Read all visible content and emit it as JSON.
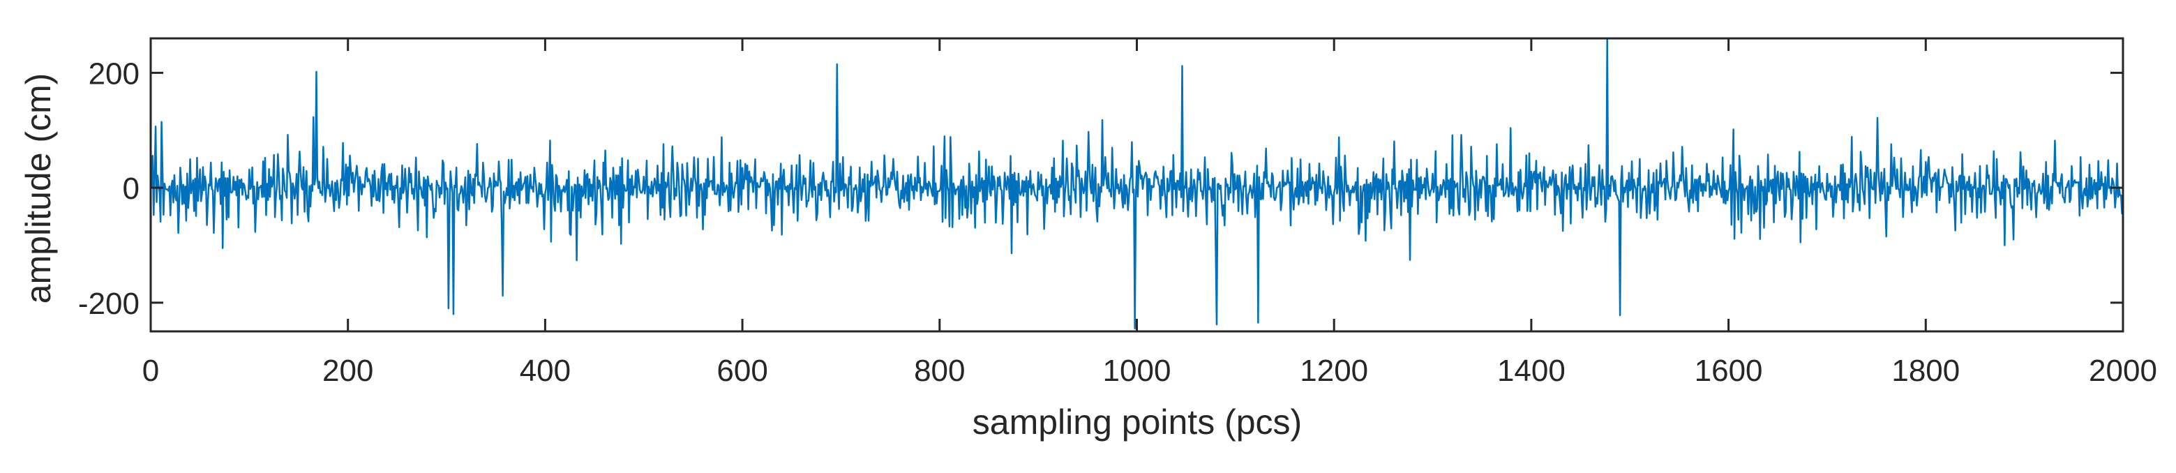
{
  "chart_data": {
    "type": "line",
    "title": "",
    "xlabel": "sampling points (pcs)",
    "ylabel": "amplitude (cm)",
    "xlim": [
      0,
      2000
    ],
    "ylim": [
      -250,
      260
    ],
    "xticks": [
      0,
      200,
      400,
      600,
      800,
      1000,
      1200,
      1400,
      1600,
      1800,
      2000
    ],
    "yticks": [
      -200,
      0,
      200
    ],
    "grid": false,
    "legend": "none",
    "line_color": "#0072BD",
    "series": [
      {
        "x_start": 1,
        "x_step": 1,
        "values": [
          -0.8,
          44.6,
          -37.2,
          12.4,
          89.3,
          -64.9,
          33.7,
          6.1,
          -16.5,
          -52.6,
          63.4,
          21.8,
          -41.7,
          5.6,
          -2.4,
          -24.0,
          -3.5,
          -5.0,
          2.5,
          -30.3,
          1.8,
          13.2,
          -38.3,
          25.4,
          -43.8,
          -54.7,
          2.6,
          -52.2,
          -21.6,
          22.7,
          5.8,
          -79.2,
          13.1,
          -31.6,
          3.6,
          -57.6,
          13.6,
          -23.1,
          -12.3,
          44.9,
          -12.9,
          11.6,
          19.9,
          -31.2,
          14.2,
          -35.3,
          29.0,
          -21.8,
          10.6,
          42.3,
          -39.2,
          -28.6,
          28.4,
          -2.7,
          15.7,
          5.1,
          -49.0,
          -50.2,
          27.6,
          4.1,
          47.6,
          -2.1,
          -2.6,
          -46.3,
          -16.8,
          19.6,
          8.0,
          -27.6,
          25.7,
          11.1,
          -21.2,
          35.4,
          -62.7,
          23.4,
          -42.6,
          29.4,
          -69.4,
          31.8,
          -45.9,
          16.5,
          -5.4,
          -8.2,
          -5.4,
          31.3,
          -33.8,
          13.2,
          -11.1,
          19.8,
          -44.9,
          7.6,
          0.4,
          25.9,
          -15.0,
          17.8,
          10.2,
          -5.0,
          -12.8,
          -11.6,
          -12.3,
          24.7,
          -6.1,
          6.1,
          39.1,
          -36.6,
          2.3,
          -42.1,
          -18.0,
          11.2,
          -20.1,
          0.6,
          8.5,
          5.8,
          -11.8,
          38.6,
          -11.6,
          29.7,
          -45.5,
          18.4,
          -30.2,
          48.5,
          -34.8,
          14.8,
          1.0,
          6.8,
          48.3,
          -40.4,
          -31.2,
          14.4,
          65.2,
          22.4,
          -20.0,
          -8.1,
          -33.1,
          39.7,
          27.2,
          -6.2,
          -26.7,
          -34.4,
          63.7,
          20.4,
          19.8,
          4.6,
          -52.5,
          26.8,
          3.0,
          -22.3,
          -4.8,
          21.4,
          -25.4,
          16.5,
          66.1,
          24.6,
          3.6,
          -28.6,
          45.4,
          -32.5,
          3.6,
          19.5,
          -23.8,
          -64.0,
          6.2,
          -41.0,
          8.6,
          -12.1,
          88.1,
          3.2,
          13.6,
          30.0,
          14.7,
          -2.4,
          35.9,
          -9.5,
          -7.5,
          -12.7,
          39.4,
          6.3,
          -29.8,
          -6.0,
          65.1,
          -6.8,
          7.2,
          -10.2,
          -3.3,
          8.6,
          -10.9,
          -38.9,
          29.0,
          -32.9,
          16.8,
          -4.5,
          -27.8,
          -10.7,
          11.3,
          11.7,
          64.6,
          -25.7,
          -5.8,
          44.8,
          -25.7,
          34.9,
          -8.4,
          32.6,
          36.0,
          13.3,
          31.9,
          -20.6,
          20.6,
          16.3,
          25.2,
          14.6,
          -26.7,
          16.1,
          29.6,
          -26.5,
          6.6,
          1.9,
          0.9,
          14.7,
          23.9,
          12.4,
          14.9,
          18.3,
          10.2,
          -40.3,
          16.2,
          -13.5,
          20.5,
          -1.4,
          -24.0,
          -55.1,
          20.2,
          -39.6,
          -5.5,
          20.2,
          23.5,
          -36.8,
          33.1,
          -2.1,
          24.5,
          -52.6,
          16.9,
          24.2,
          -3.1,
          13.9,
          -12.7,
          3.2,
          -32.8,
          4.7,
          -1.2,
          31.5,
          -14.3,
          -50.6,
          -0.5,
          -11.7,
          37.2,
          -36.2,
          -5.4,
          40.4,
          4.5,
          -34.5,
          -3.3,
          26.6,
          9.3,
          21.4,
          -20.2,
          -13.1,
          -21.8,
          3.1,
          49.0,
          -10.8,
          -43.4,
          35.9,
          -2.9,
          1.6,
          -31.8,
          -33.1,
          11.9,
          -19.4,
          11.9,
          -61.0,
          17.1,
          15.3,
          8.9,
          -3.9,
          8.5,
          -19.5,
          -28.1,
          -24.9,
          -51.6,
          12.8,
          7.1,
          24.2,
          -21.9,
          0.2,
          -8.5,
          34.3,
          24.6,
          -31.4,
          28.9,
          -3.8,
          -1.5,
          36.1,
          -27.8,
          15.9,
          6.0,
          -7.6,
          -42.2,
          10.5,
          3.6,
          35.3,
          -33.7,
          -37.0,
          -6.3,
          -6.0,
          4.0,
          -3.2,
          -33.1,
          -12.9,
          28.5,
          -42.1,
          -13.9,
          24.3,
          -24.3,
          22.3,
          -34.6,
          -24.8,
          17.4,
          -39.1,
          18.6,
          10.8,
          57.7,
          5.3,
          8.7,
          6.2,
          11.2,
          -17.0,
          32.4,
          18.1,
          -9.5,
          -14.5,
          -19.9,
          0.1,
          1.4,
          32.9,
          13.3,
          -27.5,
          -19.9,
          21.6,
          1.4,
          9.6,
          15.3,
          10.3,
          45.1,
          15.9,
          6.9,
          -36.7,
          42.5,
          -8.9,
          -31.5,
          -24.5,
          -2.7,
          -16.9,
          31.7,
          -28.1,
          -10.1,
          29.9,
          -19.0,
          14.2,
          -32.0,
          8.7,
          16.2,
          -9.5,
          8.3,
          -22.9,
          26.3,
          -3.7,
          -3.3,
          32.8,
          8.7,
          15.8,
          -24.5,
          12.0,
          -16.6,
          -0.5,
          38.5,
          -1.5,
          3.9,
          -11.0,
          22.0,
          10.4,
          0.4,
          -22.6,
          -13.7,
          41.7,
          -22.0,
          6.2,
          -19.5,
          -9.4,
          -38.1,
          -7.2
        ],
        "note_sparse_extremes": [
          {
            "x": 168,
            "y": 202
          },
          {
            "x": 302,
            "y": -210
          },
          {
            "x": 307,
            "y": -220
          },
          {
            "x": 357,
            "y": -188
          },
          {
            "x": 696,
            "y": 215
          },
          {
            "x": 998,
            "y": -245
          },
          {
            "x": 1046,
            "y": 212
          },
          {
            "x": 1081,
            "y": -238
          },
          {
            "x": 1123,
            "y": -235
          },
          {
            "x": 1477,
            "y": 260
          },
          {
            "x": 1490,
            "y": -222
          }
        ]
      }
    ]
  }
}
